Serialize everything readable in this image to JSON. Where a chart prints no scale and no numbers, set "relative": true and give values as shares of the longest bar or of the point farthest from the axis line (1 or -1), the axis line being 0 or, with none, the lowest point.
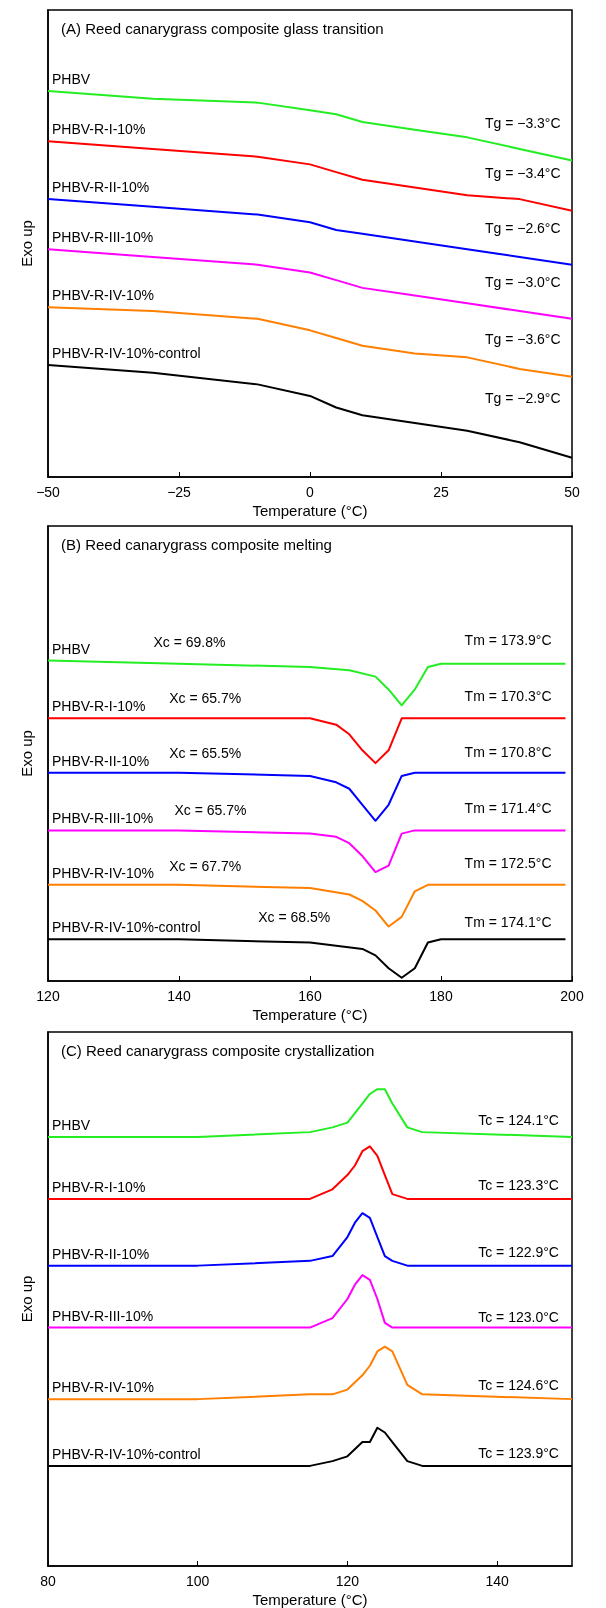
{
  "chart_data": [
    {
      "type": "line",
      "title": "(A) Reed canarygrass composite glass transition",
      "xlabel": "Temperature (°C)",
      "ylabel": "Exo up",
      "relative": true,
      "legend": false,
      "grid": false,
      "x": [
        -50,
        -30,
        -10,
        0,
        5,
        10,
        20,
        30,
        40,
        50
      ],
      "xlim": [
        -50,
        50
      ],
      "xticks": [
        -50,
        -25,
        0,
        25,
        50
      ],
      "series": [
        {
          "name": "PHBV",
          "color": "#22ee22",
          "values": [
            1.0,
            0.98,
            0.97,
            0.95,
            0.94,
            0.92,
            0.9,
            0.88,
            0.85,
            0.82
          ]
        },
        {
          "name": "PHBV-R-I-10%",
          "color": "#ff0000",
          "values": [
            0.87,
            0.85,
            0.83,
            0.81,
            0.79,
            0.77,
            0.75,
            0.73,
            0.72,
            0.69
          ]
        },
        {
          "name": "PHBV-R-II-10%",
          "color": "#0000ff",
          "values": [
            0.72,
            0.7,
            0.68,
            0.66,
            0.64,
            0.63,
            0.61,
            0.59,
            0.57,
            0.55
          ]
        },
        {
          "name": "PHBV-R-III-10%",
          "color": "#ff00ff",
          "values": [
            0.59,
            0.57,
            0.55,
            0.53,
            0.51,
            0.49,
            0.47,
            0.45,
            0.43,
            0.41
          ]
        },
        {
          "name": "PHBV-R-IV-10%",
          "color": "#ff8000",
          "values": [
            0.44,
            0.43,
            0.41,
            0.38,
            0.36,
            0.34,
            0.32,
            0.31,
            0.28,
            0.26
          ]
        },
        {
          "name": "PHBV-R-IV-10%-control",
          "color": "#000000",
          "values": [
            0.29,
            0.27,
            0.24,
            0.21,
            0.18,
            0.16,
            0.14,
            0.12,
            0.09,
            0.05
          ]
        }
      ],
      "annotations": [
        "Tg = −3.3°C",
        "Tg = −3.4°C",
        "Tg = −2.6°C",
        "Tg = −3.0°C",
        "Tg = −3.6°C",
        "Tg = −2.9°C"
      ]
    },
    {
      "type": "line",
      "title": "(B) Reed canarygrass composite melting",
      "xlabel": "Temperature (°C)",
      "ylabel": "Exo up",
      "relative": true,
      "legend": false,
      "grid": false,
      "xlim": [
        120,
        200
      ],
      "xticks": [
        120,
        140,
        160,
        180,
        200
      ],
      "series": [
        {
          "name": "PHBV",
          "color": "#22ee22",
          "x": [
            120,
            140,
            160,
            166,
            170,
            172,
            174,
            176,
            178,
            180,
            199
          ],
          "values": [
            1.0,
            0.99,
            0.98,
            0.97,
            0.95,
            0.91,
            0.86,
            0.91,
            0.98,
            0.99,
            0.99
          ]
        },
        {
          "name": "PHBV-R-I-10%",
          "color": "#ff0000",
          "x": [
            120,
            140,
            160,
            164,
            166,
            168,
            170,
            172,
            174,
            176,
            199
          ],
          "values": [
            0.82,
            0.82,
            0.82,
            0.8,
            0.77,
            0.72,
            0.68,
            0.72,
            0.82,
            0.82,
            0.82
          ]
        },
        {
          "name": "PHBV-R-II-10%",
          "color": "#0000ff",
          "x": [
            120,
            140,
            160,
            164,
            166,
            168,
            170,
            172,
            174,
            176,
            199
          ],
          "values": [
            0.65,
            0.65,
            0.64,
            0.62,
            0.6,
            0.55,
            0.5,
            0.55,
            0.64,
            0.65,
            0.65
          ]
        },
        {
          "name": "PHBV-R-III-10%",
          "color": "#ff00ff",
          "x": [
            120,
            140,
            160,
            164,
            166,
            168,
            170,
            172,
            174,
            176,
            199
          ],
          "values": [
            0.47,
            0.47,
            0.46,
            0.45,
            0.43,
            0.39,
            0.34,
            0.36,
            0.46,
            0.47,
            0.47
          ]
        },
        {
          "name": "PHBV-R-IV-10%",
          "color": "#ff8000",
          "x": [
            120,
            140,
            160,
            166,
            168,
            170,
            172,
            174,
            176,
            178,
            199
          ],
          "values": [
            0.3,
            0.3,
            0.29,
            0.27,
            0.25,
            0.22,
            0.17,
            0.2,
            0.28,
            0.3,
            0.3
          ]
        },
        {
          "name": "PHBV-R-IV-10%-control",
          "color": "#000000",
          "x": [
            120,
            140,
            160,
            168,
            170,
            172,
            174,
            176,
            178,
            180,
            199
          ],
          "values": [
            0.13,
            0.13,
            0.12,
            0.1,
            0.08,
            0.04,
            0.01,
            0.04,
            0.12,
            0.13,
            0.13
          ]
        }
      ],
      "annotations": [
        "Xc = 69.8%",
        "Tm = 173.9°C",
        "Xc = 65.7%",
        "Tm = 170.3°C",
        "Xc = 65.5%",
        "Tm = 170.8°C",
        "Xc = 65.7%",
        "Tm = 171.4°C",
        "Xc = 67.7%",
        "Tm = 172.5°C",
        "Xc = 68.5%",
        "Tm = 174.1°C"
      ]
    },
    {
      "type": "line",
      "title": "(C) Reed canarygrass composite crystallization",
      "xlabel": "Temperature (°C)",
      "ylabel": "Exo up",
      "relative": true,
      "legend": false,
      "grid": false,
      "xlim": [
        80,
        150
      ],
      "xticks": [
        80,
        100,
        120,
        140
      ],
      "series": [
        {
          "name": "PHBV",
          "color": "#22ee22",
          "x": [
            80,
            100,
            115,
            118,
            120,
            122,
            123,
            124,
            125,
            126,
            128,
            130,
            150
          ],
          "values": [
            0.9,
            0.9,
            0.91,
            0.92,
            0.93,
            0.97,
            0.99,
            1.0,
            1.0,
            0.97,
            0.92,
            0.91,
            0.9
          ]
        },
        {
          "name": "PHBV-R-I-10%",
          "color": "#ff0000",
          "x": [
            80,
            100,
            115,
            118,
            120,
            121,
            122,
            123,
            124,
            125,
            126,
            128,
            150
          ],
          "values": [
            0.77,
            0.77,
            0.77,
            0.79,
            0.82,
            0.84,
            0.87,
            0.88,
            0.86,
            0.82,
            0.78,
            0.77,
            0.77
          ]
        },
        {
          "name": "PHBV-R-II-10%",
          "color": "#0000ff",
          "x": [
            80,
            100,
            115,
            118,
            120,
            121,
            122,
            123,
            124,
            125,
            126,
            128,
            150
          ],
          "values": [
            0.63,
            0.63,
            0.64,
            0.65,
            0.69,
            0.72,
            0.74,
            0.73,
            0.69,
            0.65,
            0.64,
            0.63,
            0.63
          ]
        },
        {
          "name": "PHBV-R-III-10%",
          "color": "#ff00ff",
          "x": [
            80,
            100,
            115,
            118,
            120,
            121,
            122,
            123,
            124,
            125,
            126,
            128,
            150
          ],
          "values": [
            0.5,
            0.5,
            0.5,
            0.52,
            0.56,
            0.59,
            0.61,
            0.6,
            0.56,
            0.51,
            0.5,
            0.5,
            0.5
          ]
        },
        {
          "name": "PHBV-R-IV-10%",
          "color": "#ff8000",
          "x": [
            80,
            100,
            115,
            118,
            120,
            122,
            123,
            124,
            125,
            126,
            128,
            130,
            150
          ],
          "values": [
            0.35,
            0.35,
            0.36,
            0.36,
            0.37,
            0.4,
            0.42,
            0.45,
            0.46,
            0.45,
            0.38,
            0.36,
            0.35
          ]
        },
        {
          "name": "PHBV-R-IV-10%-control",
          "color": "#000000",
          "x": [
            80,
            100,
            115,
            118,
            120,
            122,
            123,
            124,
            125,
            126,
            128,
            130,
            150
          ],
          "values": [
            0.21,
            0.21,
            0.21,
            0.22,
            0.23,
            0.26,
            0.26,
            0.29,
            0.28,
            0.26,
            0.22,
            0.21,
            0.21
          ]
        }
      ],
      "annotations": [
        "Tc = 124.1°C",
        "Tc = 123.3°C",
        "Tc = 122.9°C",
        "Tc = 123.0°C",
        "Tc = 124.6°C",
        "Tc = 123.9°C"
      ]
    }
  ]
}
